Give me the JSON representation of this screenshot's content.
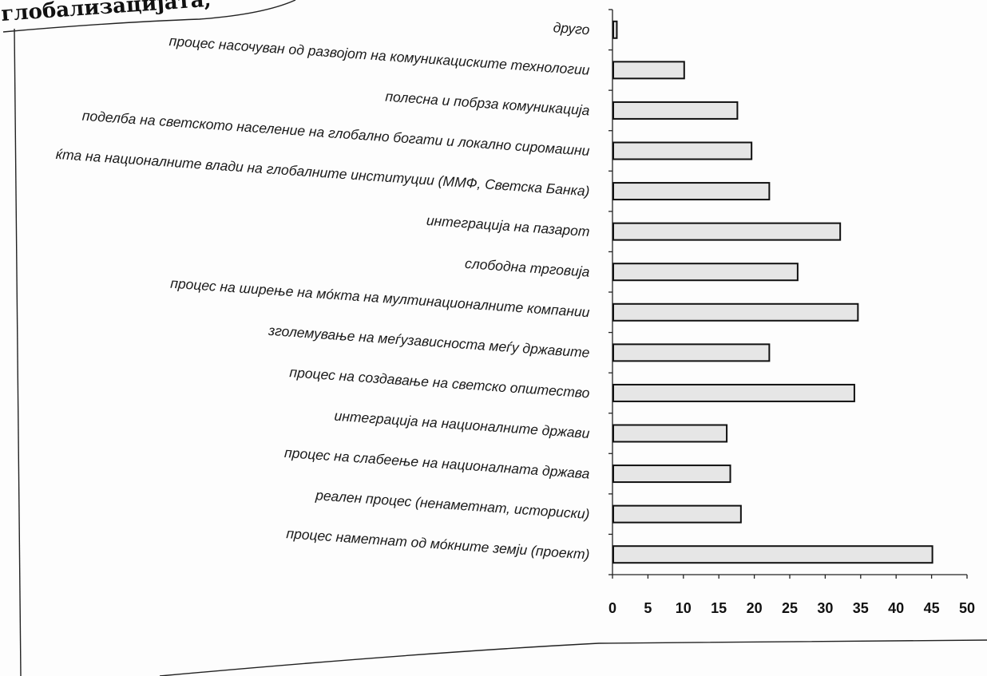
{
  "heading": "глобализацијата,",
  "chart_data": {
    "type": "bar",
    "orientation": "horizontal",
    "categories": [
      "друго",
      "процес насочуван од развојот на комуникациските технологии",
      "полесна и побрза комуникација",
      "поделба на светското население на глобално богати и локално сиромашни",
      "ќта на националните влади на глобалните институции (ММФ, Светска Банка)",
      "интеграција на пазарот",
      "слободна трговија",
      "процес на ширење на мо́кта на мултинационалните компании",
      "зголемување на меѓузависноста меѓу државите",
      "процес на создавање на светско општество",
      "интеграција на националните држави",
      "процес на слабеење на националната држава",
      "реален процес (ненаметнат, историски)",
      "процес наметнат од мо́кните земји (проект)"
    ],
    "values": [
      0.5,
      10,
      17.5,
      19.5,
      22,
      32,
      26,
      34.5,
      22,
      34,
      16,
      16.5,
      18,
      45
    ],
    "xticks": [
      "0",
      "5",
      "10",
      "15",
      "20",
      "25",
      "30",
      "35",
      "40",
      "45",
      "50"
    ],
    "xlim": [
      0,
      50
    ],
    "grid": false,
    "legend": "none"
  }
}
